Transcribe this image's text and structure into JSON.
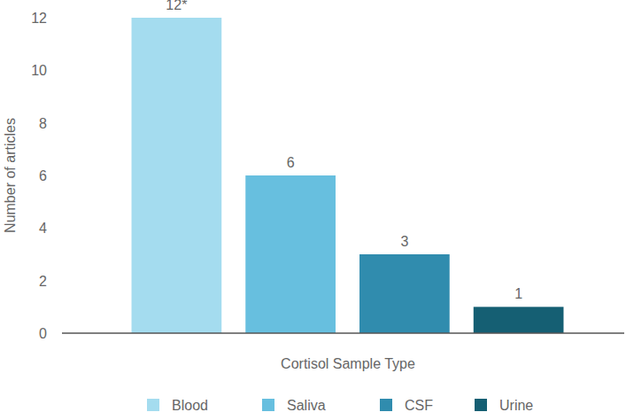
{
  "chart_data": {
    "type": "bar",
    "x_label": "Cortisol Sample Type",
    "y_label": "Number of articles",
    "categories": [
      "Blood",
      "Saliva",
      "CSF",
      "Urine"
    ],
    "values": [
      12,
      6,
      3,
      1
    ],
    "value_labels": [
      "12*",
      "6",
      "3",
      "1"
    ],
    "colors": [
      "#a4dcef",
      "#67bfdf",
      "#308cae",
      "#155f73"
    ],
    "ylim": [
      0,
      12
    ],
    "yticks": [
      0,
      2,
      4,
      6,
      8,
      10,
      12
    ],
    "grid": false,
    "legend": "bottom",
    "data_labels": true
  }
}
